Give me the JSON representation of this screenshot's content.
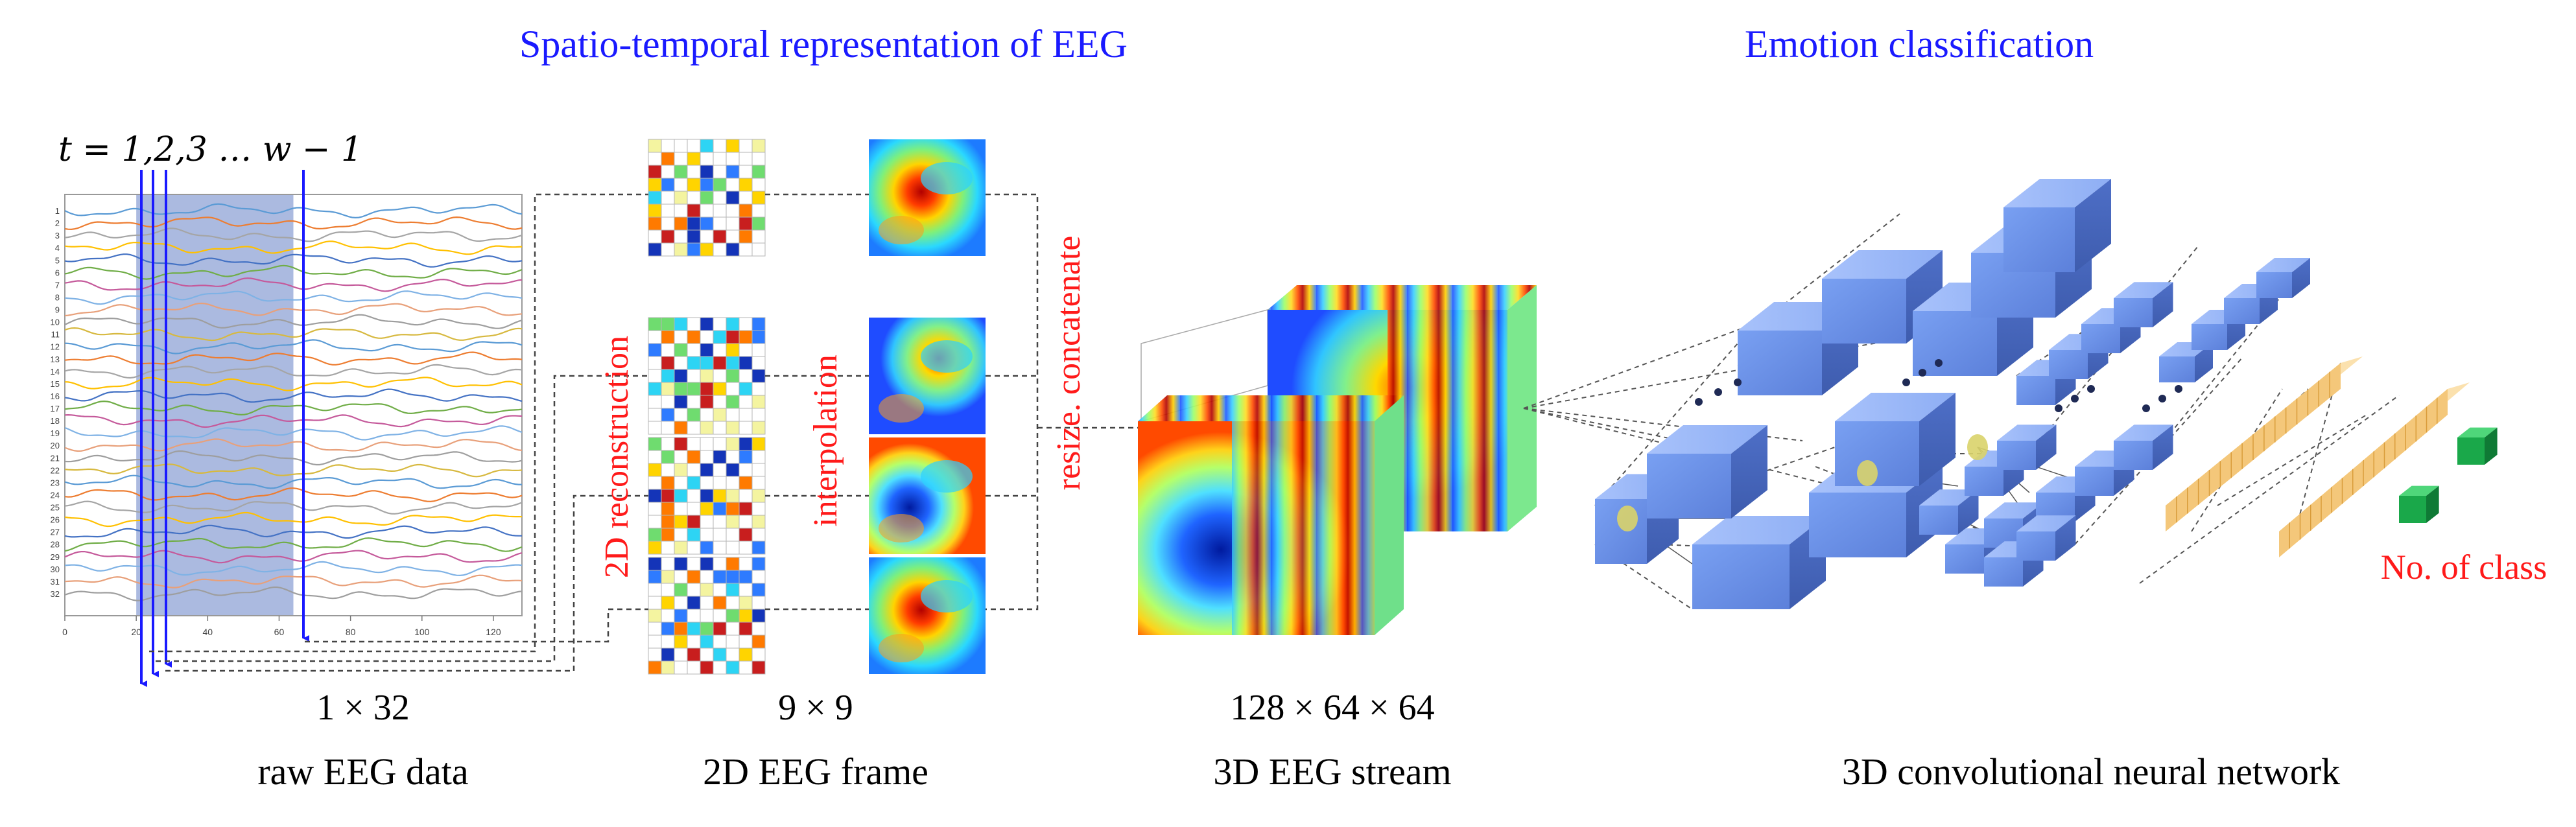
{
  "headers": {
    "left": "Spatio-temporal representation of EEG",
    "right": "Emotion classification"
  },
  "time_label": "t = 1,2,3  …  w − 1",
  "raw_plot": {
    "y_ticks": [
      "1",
      "2",
      "3",
      "4",
      "5",
      "6",
      "7",
      "8",
      "9",
      "10",
      "11",
      "12",
      "13",
      "14",
      "15",
      "16",
      "17",
      "18",
      "19",
      "20",
      "21",
      "22",
      "23",
      "24",
      "25",
      "26",
      "27",
      "28",
      "29",
      "30",
      "31",
      "32"
    ],
    "x_ticks": [
      "0",
      "20",
      "40",
      "60",
      "80",
      "100",
      "120"
    ],
    "highlight_range": [
      20,
      64
    ]
  },
  "process_labels": {
    "reconstruction": "2D reconstruction",
    "interpolation": "interpolation",
    "resize": "resize. concatenate"
  },
  "dims": {
    "raw": "1 × 32",
    "frame": "9 × 9",
    "stream": "128 × 64 × 64"
  },
  "captions": {
    "raw": "raw EEG data",
    "frame": "2D EEG frame",
    "stream": "3D EEG stream",
    "cnn": "3D convolutional neural network"
  },
  "class_label": "No. of class",
  "colors": {
    "header": "#1a1aff",
    "process": "#ff1a1a",
    "arrow": "#1a1aff",
    "block": "#6b8fe8",
    "fc": "#f4c77a",
    "out": "#1aa84a",
    "highlight": "#8fa3d6"
  }
}
